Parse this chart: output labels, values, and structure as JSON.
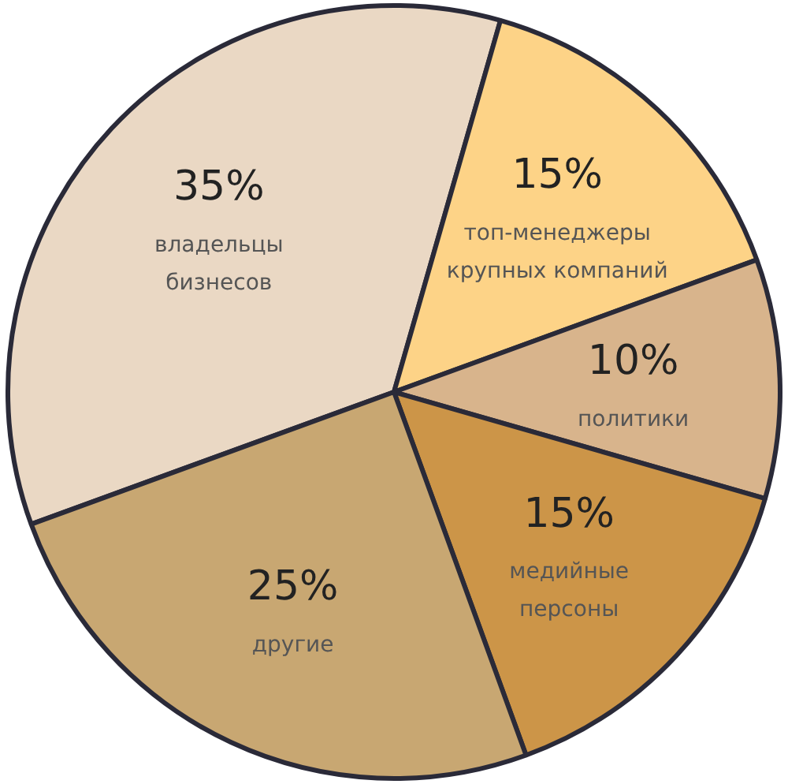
{
  "chart_data": {
    "type": "pie",
    "categories": [
      "владельцы\nбизнесов",
      "топ-менеджеры\nкрупных компаний",
      "политики",
      "медийные\nперсоны",
      "другие"
    ],
    "values": [
      35,
      15,
      10,
      15,
      25
    ],
    "colors": [
      "#ead8c4",
      "#fdd387",
      "#d8b48c",
      "#cc9548",
      "#c8a772"
    ],
    "value_labels": [
      "35%",
      "15%",
      "10%",
      "15%",
      "25%"
    ],
    "legend": false
  }
}
